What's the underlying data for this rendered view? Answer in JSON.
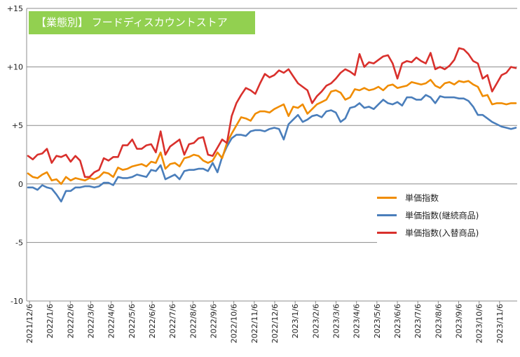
{
  "chart_data": {
    "type": "line",
    "title": "【業態別】 フードディスカウントストア",
    "xlabel": "",
    "ylabel": "",
    "ylim": [
      -10,
      15
    ],
    "yticks": [
      "+15",
      "+10",
      "+5",
      "0",
      "-5",
      "-10"
    ],
    "ytick_values": [
      15,
      10,
      5,
      0,
      -5,
      -10
    ],
    "xticks": [
      "2021/12/6",
      "2022/1/6",
      "2022/2/6",
      "2022/3/6",
      "2022/4/6",
      "2022/5/6",
      "2022/6/6",
      "2022/7/6",
      "2022/8/6",
      "2022/9/6",
      "2022/10/6",
      "2022/11/6",
      "2022/12/6",
      "2023/1/6",
      "2023/2/6",
      "2023/3/6",
      "2023/4/6",
      "2023/5/6",
      "2023/6/6",
      "2023/7/6",
      "2023/8/6",
      "2023/9/6",
      "2023/10/6",
      "2023/11/6"
    ],
    "grid": true,
    "legend_position": "bottom-right",
    "series": [
      {
        "name": "単価指数",
        "color": "#f08c00",
        "values": [
          0.9,
          0.6,
          0.5,
          0.8,
          1.0,
          0.3,
          0.4,
          0.0,
          0.6,
          0.3,
          0.5,
          0.4,
          0.3,
          0.5,
          0.4,
          0.6,
          1.0,
          0.9,
          0.6,
          1.4,
          1.2,
          1.3,
          1.5,
          1.6,
          1.7,
          1.5,
          1.9,
          1.8,
          2.7,
          1.3,
          1.7,
          1.8,
          1.5,
          2.2,
          2.3,
          2.5,
          2.4,
          2.0,
          1.8,
          2.0,
          2.7,
          2.2,
          3.5,
          4.3,
          5.0,
          5.7,
          5.6,
          5.4,
          6.0,
          6.2,
          6.2,
          6.1,
          6.4,
          6.6,
          6.8,
          5.8,
          6.6,
          6.5,
          6.8,
          6.0,
          6.4,
          6.8,
          7.0,
          7.2,
          7.9,
          8.0,
          7.8,
          7.2,
          7.4,
          8.1,
          8.0,
          8.2,
          8.0,
          8.1,
          8.3,
          8.0,
          8.4,
          8.5,
          8.2,
          8.3,
          8.4,
          8.7,
          8.6,
          8.5,
          8.6,
          8.9,
          8.4,
          8.2,
          8.6,
          8.7,
          8.5,
          8.8,
          8.7,
          8.8,
          8.5,
          8.3,
          7.5,
          7.6,
          6.8,
          6.9,
          6.9,
          6.8,
          6.9,
          6.9
        ]
      },
      {
        "name": "単価指数(継続商品)",
        "color": "#4a7ebb",
        "values": [
          -0.3,
          -0.3,
          -0.5,
          -0.1,
          -0.3,
          -0.4,
          -0.9,
          -1.5,
          -0.6,
          -0.6,
          -0.3,
          -0.3,
          -0.2,
          -0.2,
          -0.3,
          -0.2,
          0.1,
          0.1,
          -0.1,
          0.6,
          0.5,
          0.5,
          0.6,
          0.8,
          0.7,
          0.6,
          1.2,
          1.1,
          1.6,
          0.4,
          0.6,
          0.8,
          0.4,
          1.1,
          1.2,
          1.2,
          1.3,
          1.3,
          1.1,
          1.8,
          1.0,
          2.3,
          3.2,
          3.9,
          4.2,
          4.2,
          4.1,
          4.5,
          4.6,
          4.6,
          4.5,
          4.7,
          4.8,
          4.7,
          3.8,
          5.1,
          5.5,
          5.9,
          5.3,
          5.5,
          5.8,
          5.9,
          5.7,
          6.2,
          6.3,
          6.1,
          5.3,
          5.6,
          6.5,
          6.6,
          6.9,
          6.5,
          6.6,
          6.4,
          6.8,
          7.2,
          6.9,
          6.8,
          7.0,
          6.7,
          7.4,
          7.4,
          7.2,
          7.2,
          7.6,
          7.4,
          6.9,
          7.5,
          7.4,
          7.4,
          7.4,
          7.3,
          7.3,
          7.1,
          6.6,
          5.9,
          5.9,
          5.6,
          5.3,
          5.1,
          4.9,
          4.8,
          4.7,
          4.8
        ]
      },
      {
        "name": "単価指数(入替商品)",
        "color": "#d9302c",
        "values": [
          2.4,
          2.1,
          2.5,
          2.6,
          3.0,
          1.8,
          2.4,
          2.3,
          2.5,
          1.9,
          2.4,
          2.0,
          0.6,
          0.6,
          1.0,
          1.2,
          2.2,
          2.0,
          2.3,
          2.3,
          3.3,
          3.3,
          3.8,
          3.0,
          3.0,
          3.3,
          3.4,
          2.7,
          4.5,
          2.5,
          3.2,
          3.5,
          3.8,
          2.5,
          3.4,
          3.5,
          3.9,
          4.0,
          2.5,
          2.4,
          3.1,
          3.8,
          3.5,
          5.8,
          6.9,
          7.6,
          8.2,
          8.0,
          7.7,
          8.6,
          9.4,
          9.1,
          9.3,
          9.7,
          9.5,
          9.8,
          9.2,
          8.6,
          8.3,
          8.0,
          6.9,
          7.5,
          7.9,
          8.4,
          8.6,
          9.0,
          9.5,
          9.8,
          9.6,
          9.3,
          11.1,
          10.0,
          10.4,
          10.3,
          10.6,
          10.9,
          11.0,
          10.3,
          9.0,
          10.3,
          10.5,
          10.4,
          10.8,
          10.5,
          10.3,
          11.2,
          9.8,
          10.0,
          9.8,
          10.1,
          10.6,
          11.6,
          11.5,
          11.1,
          10.5,
          10.3,
          9.0,
          9.3,
          7.9,
          8.6,
          9.3,
          9.5,
          10.0,
          9.9
        ]
      }
    ]
  }
}
